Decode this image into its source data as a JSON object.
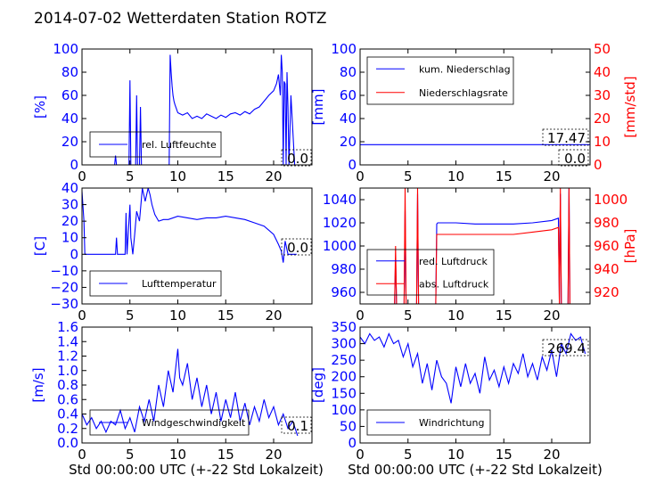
{
  "figure": {
    "title": "2014-07-02 Wetterdaten Station ROTZ",
    "xlabel": "Std 00:00:00 UTC (+-22 Std Lokalzeit)"
  },
  "colors": {
    "primary": "#0000ff",
    "secondary": "#ff0000",
    "frame": "#000000"
  },
  "chart_data": [
    {
      "type": "line",
      "ylabel": "[%]",
      "xlim": [
        0,
        24
      ],
      "ylim": [
        0,
        100
      ],
      "xticks": [
        "0",
        "5",
        "10",
        "15",
        "20"
      ],
      "yticks": [
        "0",
        "20",
        "40",
        "60",
        "80",
        "100"
      ],
      "last_value": "0.0",
      "series": [
        {
          "name": "rel. Luftfeuchte",
          "axis": "left",
          "color": "#0000ff",
          "x": [
            0,
            3.4,
            3.5,
            3.6,
            4.9,
            5.0,
            5.1,
            5.6,
            5.7,
            5.8,
            6.0,
            6.1,
            6.2,
            9.1,
            9.2,
            9.3,
            9.4,
            9.5,
            9.6,
            9.7,
            10,
            10.5,
            11,
            11.5,
            12,
            12.5,
            13,
            13.5,
            14,
            14.5,
            15,
            15.5,
            16,
            16.5,
            17,
            17.5,
            18,
            18.5,
            19,
            19.5,
            20,
            20.3,
            20.5,
            20.7,
            20.8,
            20.9,
            21.0,
            21.1,
            21.2,
            21.3,
            21.4,
            21.5,
            21.6,
            21.8,
            22.0,
            22.2,
            22.5
          ],
          "y": [
            0,
            0,
            8,
            0,
            0,
            73,
            0,
            0,
            60,
            0,
            0,
            50,
            0,
            0,
            95,
            80,
            68,
            60,
            55,
            52,
            45,
            43,
            45,
            40,
            42,
            40,
            44,
            42,
            40,
            43,
            41,
            44,
            45,
            43,
            46,
            44,
            48,
            50,
            55,
            60,
            64,
            70,
            78,
            60,
            95,
            80,
            0,
            72,
            70,
            0,
            80,
            50,
            0,
            60,
            30,
            0,
            0
          ]
        }
      ]
    },
    {
      "type": "line",
      "ylabel": "[mm]",
      "ylabel_right": "[mm/std]",
      "xlim": [
        0,
        24
      ],
      "ylim": [
        0,
        100
      ],
      "ylim_right": [
        0,
        50
      ],
      "xticks": [
        "0",
        "5",
        "10",
        "15",
        "20"
      ],
      "yticks": [
        "0",
        "20",
        "40",
        "60",
        "80",
        "100"
      ],
      "yticks_right": [
        "0",
        "10",
        "20",
        "30",
        "40",
        "50"
      ],
      "last_value": "17.47",
      "last_value_2": "0.0",
      "series": [
        {
          "name": "kum. Niederschlag",
          "axis": "left",
          "color": "#0000ff",
          "x": [
            0,
            24
          ],
          "y": [
            17.47,
            17.47
          ]
        },
        {
          "name": "Niederschlagsrate",
          "axis": "right",
          "color": "#ff0000",
          "x": [
            0,
            24
          ],
          "y": [
            0,
            0
          ]
        }
      ]
    },
    {
      "type": "line",
      "ylabel": "[C]",
      "xlim": [
        0,
        24
      ],
      "ylim": [
        -30,
        40
      ],
      "xticks": [
        "0",
        "5",
        "10",
        "15",
        "20"
      ],
      "yticks": [
        "−30",
        "−20",
        "−10",
        "0",
        "10",
        "20",
        "30",
        "40"
      ],
      "last_value": "0.0",
      "series": [
        {
          "name": "Lufttemperatur",
          "axis": "left",
          "color": "#0000ff",
          "x": [
            0,
            0.2,
            0.3,
            3.5,
            3.6,
            3.7,
            4.5,
            4.6,
            4.7,
            5.0,
            5.1,
            5.3,
            5.5,
            5.7,
            6.0,
            6.3,
            6.6,
            6.9,
            7.1,
            7.3,
            7.6,
            8.0,
            8.5,
            9,
            10,
            11,
            12,
            13,
            14,
            15,
            16,
            17,
            18,
            19,
            20,
            20.5,
            20.8,
            21.0,
            21.2,
            21.5,
            22,
            22.4
          ],
          "y": [
            38,
            20,
            0,
            0,
            10,
            0,
            0,
            25,
            0,
            30,
            10,
            0,
            12,
            26,
            20,
            40,
            32,
            40,
            36,
            30,
            24,
            20,
            21,
            21,
            23,
            22,
            21,
            22,
            22,
            23,
            22,
            21,
            19,
            17,
            12,
            6,
            2,
            -5,
            8,
            0,
            0,
            0
          ]
        }
      ]
    },
    {
      "type": "line",
      "ylabel_right": "[hPa]",
      "xlim": [
        0,
        24
      ],
      "ylim": [
        950,
        1050
      ],
      "ylim_right": [
        910,
        1010
      ],
      "xticks": [
        "0",
        "5",
        "10",
        "15",
        "20"
      ],
      "yticks": [
        "960",
        "980",
        "1000",
        "1020",
        "1040"
      ],
      "yticks_right": [
        "920",
        "940",
        "960",
        "980",
        "1000"
      ],
      "series": [
        {
          "name": "red. Luftdruck",
          "axis": "left",
          "color": "#0000ff",
          "x": [
            3.6,
            3.7,
            3.8,
            4.6,
            4.7,
            4.8,
            5.9,
            6.0,
            6.1,
            7.9,
            8.0,
            8.1,
            10,
            12,
            14,
            16,
            18,
            20,
            20.7,
            20.8,
            20.9,
            21.0,
            21.7,
            21.8,
            21.9
          ],
          "y": [
            950,
            990,
            950,
            950,
            1030,
            950,
            950,
            1045,
            950,
            950,
            1019,
            1020,
            1020,
            1019,
            1019,
            1019,
            1020,
            1022,
            1024,
            950,
            1045,
            950,
            950,
            1050,
            950
          ]
        },
        {
          "name": "abs. Luftdruck",
          "axis": "right",
          "color": "#ff0000",
          "x": [
            3.6,
            3.7,
            3.8,
            4.6,
            4.7,
            4.8,
            5.9,
            6.0,
            6.1,
            7.9,
            8.0,
            8.1,
            10,
            12,
            14,
            16,
            18,
            20,
            20.7,
            20.8,
            20.9,
            21.0,
            21.7,
            21.8,
            21.9
          ],
          "y": [
            910,
            960,
            910,
            910,
            1010,
            910,
            910,
            1010,
            910,
            910,
            970,
            970,
            970,
            970,
            970,
            970,
            972,
            974,
            976,
            910,
            1010,
            910,
            910,
            1010,
            910
          ]
        }
      ]
    },
    {
      "type": "line",
      "ylabel": "[m/s]",
      "xlim": [
        0,
        24
      ],
      "ylim": [
        0,
        1.6
      ],
      "xticks": [
        "0",
        "5",
        "10",
        "15",
        "20"
      ],
      "yticks": [
        "0.0",
        "0.2",
        "0.4",
        "0.6",
        "0.8",
        "1.0",
        "1.2",
        "1.4",
        "1.6"
      ],
      "last_value": "0.1",
      "series": [
        {
          "name": "Windgeschwindigkeit",
          "axis": "left",
          "color": "#0000ff",
          "x": [
            0,
            0.5,
            1,
            1.5,
            2,
            2.5,
            3,
            3.5,
            4,
            4.5,
            5,
            5.5,
            6,
            6.5,
            7,
            7.5,
            8,
            8.5,
            9,
            9.5,
            10,
            10.2,
            10.5,
            11,
            11.5,
            12,
            12.5,
            13,
            13.5,
            14,
            14.5,
            15,
            15.5,
            16,
            16.5,
            17,
            17.5,
            18,
            18.5,
            19,
            19.5,
            20,
            20.5,
            21,
            21.5,
            22,
            22.5
          ],
          "y": [
            0.4,
            0.25,
            0.35,
            0.2,
            0.3,
            0.15,
            0.3,
            0.25,
            0.45,
            0.2,
            0.35,
            0.15,
            0.5,
            0.3,
            0.6,
            0.3,
            0.8,
            0.5,
            1.0,
            0.7,
            1.3,
            0.9,
            0.8,
            1.1,
            0.6,
            0.9,
            0.5,
            0.8,
            0.4,
            0.7,
            0.3,
            0.6,
            0.35,
            0.7,
            0.3,
            0.55,
            0.25,
            0.5,
            0.3,
            0.6,
            0.35,
            0.5,
            0.25,
            0.4,
            0.2,
            0.3,
            0.1
          ]
        }
      ]
    },
    {
      "type": "line",
      "ylabel": "[deg]",
      "xlim": [
        0,
        24
      ],
      "ylim": [
        0,
        350
      ],
      "xticks": [
        "0",
        "5",
        "10",
        "15",
        "20"
      ],
      "yticks": [
        "0",
        "50",
        "100",
        "150",
        "200",
        "250",
        "300",
        "350"
      ],
      "last_value": "269.4",
      "series": [
        {
          "name": "Windrichtung",
          "axis": "left",
          "color": "#0000ff",
          "x": [
            0,
            0.5,
            1,
            1.5,
            2,
            2.5,
            3,
            3.5,
            4,
            4.5,
            5,
            5.5,
            6,
            6.5,
            7,
            7.5,
            8,
            8.5,
            9,
            9.5,
            10,
            10.5,
            11,
            11.5,
            12,
            12.5,
            13,
            13.5,
            14,
            14.5,
            15,
            15.5,
            16,
            16.5,
            17,
            17.5,
            18,
            18.5,
            19,
            19.5,
            20,
            20.5,
            21,
            21.5,
            22,
            22.5,
            23,
            23.5
          ],
          "y": [
            320,
            300,
            330,
            310,
            320,
            290,
            330,
            300,
            310,
            260,
            300,
            230,
            270,
            180,
            240,
            160,
            250,
            200,
            180,
            120,
            230,
            170,
            240,
            180,
            210,
            150,
            260,
            190,
            220,
            170,
            230,
            180,
            240,
            210,
            270,
            200,
            240,
            190,
            260,
            220,
            280,
            200,
            300,
            270,
            330,
            310,
            320,
            269.4
          ]
        }
      ]
    }
  ]
}
